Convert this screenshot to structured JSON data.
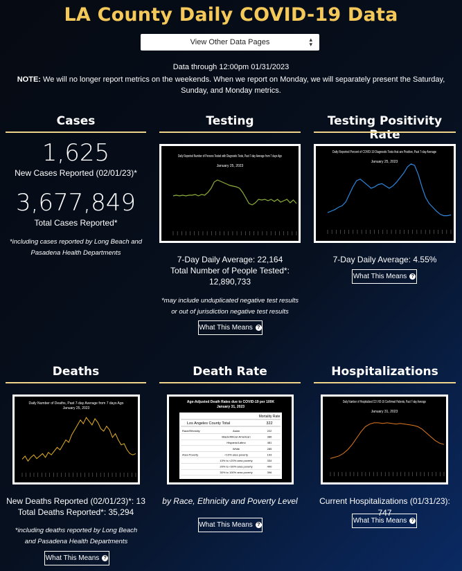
{
  "header": {
    "title": "LA County Daily COVID-19 Data",
    "dropdown_label": "View Other Data Pages",
    "data_through": "Data through 12:00pm 01/31/2023",
    "note_label": "NOTE:",
    "note_text": " We will no longer report metrics on the weekends. When we report on Monday, we will separately present the Saturday, Sunday, and Monday metrics."
  },
  "cases": {
    "title": "Cases",
    "new_value": "1,625",
    "new_label": "New Cases Reported (02/01/23)*",
    "total_value": "3,677,849",
    "total_label": "Total Cases Reported*",
    "footnote": "*including cases reported by Long Beach and Pasadena Health Departments"
  },
  "testing": {
    "title": "Testing",
    "chart_title": "Daily Reported Number of Persons Tested with Diagnostic Tests, Past 7-day Average from 7 days Ago",
    "chart_date": "January 25, 2023",
    "avg": "7-Day Daily Average: 22,164",
    "total_label": "Total Number of People Tested*:",
    "total_value": "12,890,733",
    "footnote": "*may include unduplicated negative test results or out of jurisdiction negative test results",
    "button": "What This Means"
  },
  "positivity": {
    "title": "Testing Positivity Rate",
    "chart_title": "Daily Reported Percent of COVID-19 Diagnostic Tests that are Positive, Past 7-day Average",
    "chart_date": "January 25, 2023",
    "avg": "7-Day Daily Average: 4.55%",
    "button": "What This Means"
  },
  "deaths": {
    "title": "Deaths",
    "chart_title": "Daily Number of Deaths, Past 7-day Average from 7 days Ago",
    "chart_date": "January 25, 2023",
    "new": "New Deaths Reported (02/01/23)*: 13",
    "total": "Total Deaths Reported*: 35,294",
    "footnote": "*including deaths reported by Long Beach and Pasadena Health Departments",
    "button": "What This Means"
  },
  "death_rate": {
    "title": "Death Rate",
    "chart_title": "Age-Adjusted Death Rates due to COVID-19 per 100K",
    "chart_date": "January 31, 2023",
    "table_header": "Mortality Rate",
    "county_label": "Los Angeles County Total",
    "county_value": "322",
    "rows": [
      {
        "group": "Race/Ethnicity",
        "label": "Asian",
        "value": "222"
      },
      {
        "group": "",
        "label": "Black/African American",
        "value": "386"
      },
      {
        "group": "",
        "label": "Hispanic/Latino",
        "value": "481"
      },
      {
        "group": "",
        "label": "White",
        "value": "285"
      },
      {
        "group": "Area Poverty",
        "label": "<10% area poverty",
        "value": "193"
      },
      {
        "group": "",
        "label": "10% to <20% area poverty",
        "value": "334"
      },
      {
        "group": "",
        "label": "20% to <30% area poverty",
        "value": "400"
      },
      {
        "group": "",
        "label": "30% to 100% area poverty",
        "value": "396"
      }
    ],
    "caption": "by Race, Ethnicity and Poverty Level",
    "button": "What This Means"
  },
  "hospitalizations": {
    "title": "Hospitalizations",
    "chart_title": "Daily Number of Hospitalized CO VID-19 Confirmed Patients, Past 7-day Average",
    "chart_date": "January 31, 2023",
    "current": "Current Hospitalizations (01/31/23): 747",
    "button": "What This Means"
  },
  "colors": {
    "title_gold": "#f5c85a",
    "rule": "#f0d48a",
    "testing_line": "#8fb03a",
    "positivity_line": "#2e86de",
    "deaths_line": "#e5b020",
    "hosp_line": "#e07a20"
  },
  "chart_data": [
    {
      "type": "line",
      "title": "Daily Reported Number of Persons Tested with Diagnostic Tests, Past 7-day Average from 7 days Ago",
      "values": [
        0.55,
        0.56,
        0.55,
        0.56,
        0.55,
        0.56,
        0.56,
        0.57,
        0.55,
        0.57,
        0.56,
        0.6,
        0.66,
        0.75,
        0.78,
        0.76,
        0.74,
        0.72,
        0.7,
        0.69,
        0.68,
        0.66,
        0.6,
        0.52,
        0.44,
        0.42,
        0.45,
        0.5,
        0.49,
        0.5,
        0.48,
        0.5,
        0.47,
        0.5,
        0.46,
        0.48,
        0.5,
        0.45,
        0.49,
        0.44
      ]
    },
    {
      "type": "line",
      "title": "Daily Reported Percent of COVID-19 Diagnostic Tests that are Positive, Past 7-day Average",
      "values": [
        0.28,
        0.3,
        0.32,
        0.35,
        0.37,
        0.42,
        0.52,
        0.62,
        0.7,
        0.72,
        0.68,
        0.64,
        0.6,
        0.62,
        0.65,
        0.66,
        0.63,
        0.6,
        0.63,
        0.68,
        0.74,
        0.8,
        0.88,
        0.92,
        0.9,
        0.78,
        0.62,
        0.48,
        0.4,
        0.35,
        0.3,
        0.26,
        0.24,
        0.24,
        0.25
      ]
    },
    {
      "type": "line",
      "title": "Daily Number of Deaths, Past 7-day Average from 7 days Ago",
      "values": [
        0.25,
        0.3,
        0.22,
        0.28,
        0.32,
        0.26,
        0.3,
        0.34,
        0.28,
        0.36,
        0.32,
        0.38,
        0.44,
        0.4,
        0.48,
        0.56,
        0.52,
        0.64,
        0.72,
        0.8,
        0.88,
        0.82,
        0.92,
        0.86,
        0.8,
        0.9,
        0.84,
        0.74,
        0.7,
        0.78,
        0.72,
        0.6,
        0.66,
        0.56,
        0.48,
        0.5,
        0.4,
        0.34,
        0.32,
        0.34
      ]
    },
    {
      "type": "line",
      "title": "Daily Number of Hospitalized COVID-19 Confirmed Patients, Past 7-day Average",
      "values": [
        0.3,
        0.32,
        0.34,
        0.38,
        0.44,
        0.52,
        0.62,
        0.72,
        0.8,
        0.84,
        0.86,
        0.86,
        0.85,
        0.86,
        0.85,
        0.84,
        0.85,
        0.84,
        0.83,
        0.82,
        0.8,
        0.76,
        0.7,
        0.64,
        0.58,
        0.54,
        0.52
      ]
    }
  ]
}
